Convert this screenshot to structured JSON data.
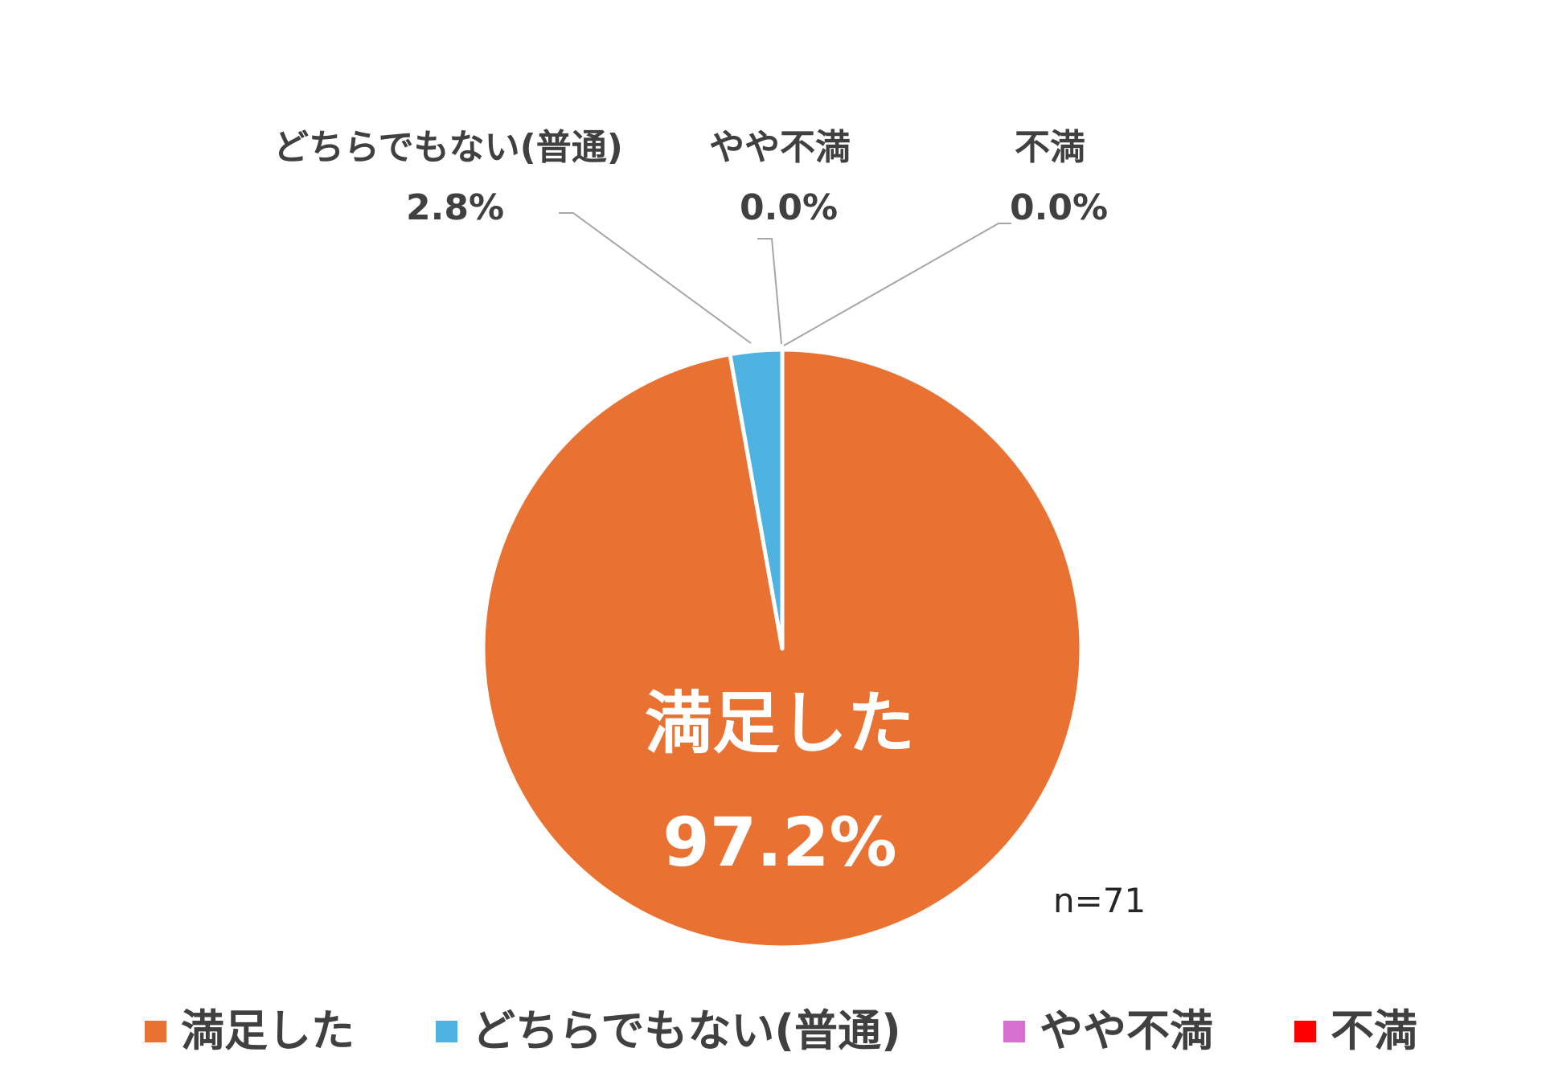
{
  "chart_data": {
    "type": "pie",
    "categories": [
      "満足した",
      "どちらでもない(普通)",
      "やや不満",
      "不満"
    ],
    "values": [
      97.2,
      2.8,
      0.0,
      0.0
    ],
    "value_labels": [
      "97.2%",
      "2.8%",
      "0.0%",
      "0.0%"
    ],
    "colors": [
      "#E97132",
      "#4EB3E0",
      "#D76FD0",
      "#FF0000"
    ],
    "legend_position": "bottom",
    "annotation": "n=71",
    "start_angle": "12 o'clock, clockwise"
  },
  "legend": {
    "items": [
      {
        "label": "満足した",
        "color": "#E97132"
      },
      {
        "label": "どちらでもない(普通)",
        "color": "#4EB3E0"
      },
      {
        "label": "やや不満",
        "color": "#D76FD0"
      },
      {
        "label": "不満",
        "color": "#FF0000"
      }
    ]
  }
}
